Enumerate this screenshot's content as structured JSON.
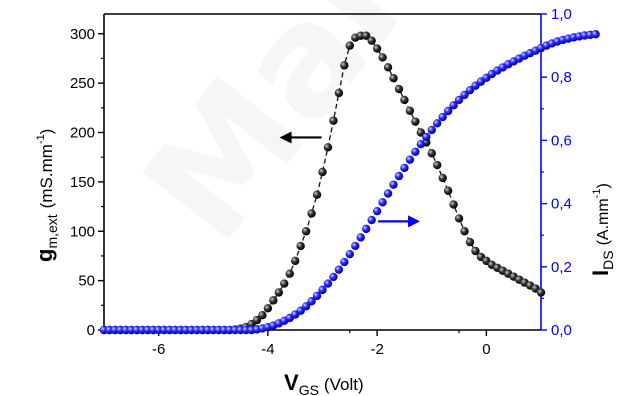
{
  "chart_data": {
    "type": "scatter",
    "watermark": "Manuscript",
    "x": {
      "label_main": "V",
      "label_sub": "GS",
      "label_unit": "(Volt)",
      "ticks": [
        "-6",
        "-4",
        "-2",
        "0"
      ],
      "tick_values": [
        -6,
        -4,
        -2,
        0
      ],
      "range": [
        -7,
        1
      ]
    },
    "y_left": {
      "label_main": "g",
      "label_sub": "m,ext",
      "label_unit": "(mS.mm",
      "label_sup": "-1",
      "label_close": ")",
      "ticks": [
        "0",
        "50",
        "100",
        "150",
        "200",
        "250",
        "300"
      ],
      "tick_values": [
        0,
        50,
        100,
        150,
        200,
        250,
        300
      ],
      "range": [
        0,
        320
      ],
      "color": "#000000"
    },
    "y_right": {
      "label_main": "I",
      "label_sub": "DS",
      "label_unit": "(A.mm",
      "label_sup": "-1",
      "label_close": ")",
      "ticks": [
        "0,0",
        "0,2",
        "0,4",
        "0,6",
        "0,8",
        "1,0"
      ],
      "tick_values": [
        0,
        0.2,
        0.4,
        0.6,
        0.8,
        1.0
      ],
      "range": [
        0,
        1.0
      ],
      "color": "#0000ff"
    },
    "series": [
      {
        "axis": "left",
        "color": "#111111",
        "marker": "sphere",
        "line": "dashed",
        "x_start": -7.0,
        "x_step": 0.1,
        "values": [
          0,
          0,
          0,
          0,
          0,
          0,
          0,
          0,
          0,
          0,
          0,
          0,
          0,
          0,
          0,
          0,
          0,
          0,
          0,
          0,
          0,
          0,
          0,
          0,
          0.5,
          1.5,
          3,
          6,
          10,
          15,
          22,
          30,
          38,
          47,
          57,
          70,
          85,
          100,
          118,
          137,
          160,
          185,
          212,
          240,
          268,
          288,
          296,
          298,
          298,
          293,
          285,
          276,
          266,
          255,
          244,
          233,
          222,
          211,
          200,
          190,
          179,
          167,
          154,
          141,
          127,
          113,
          100,
          89,
          80,
          74,
          70,
          66,
          63,
          60,
          57,
          54,
          51,
          48,
          45,
          42,
          38
        ]
      },
      {
        "axis": "right",
        "color": "#1a1ae6",
        "marker": "sphere",
        "line": "none",
        "x_start": -7.0,
        "x_step": 0.1,
        "values": [
          0,
          0,
          0,
          0,
          0,
          0,
          0,
          0,
          0,
          0,
          0,
          0,
          0,
          0,
          0,
          0,
          0,
          0,
          0,
          0,
          0,
          0,
          0,
          0,
          0,
          0,
          0,
          0,
          0.002,
          0.005,
          0.009,
          0.014,
          0.021,
          0.029,
          0.038,
          0.049,
          0.061,
          0.075,
          0.091,
          0.108,
          0.127,
          0.147,
          0.168,
          0.191,
          0.215,
          0.24,
          0.266,
          0.293,
          0.32,
          0.348,
          0.376,
          0.404,
          0.432,
          0.46,
          0.487,
          0.513,
          0.539,
          0.564,
          0.588,
          0.611,
          0.633,
          0.654,
          0.674,
          0.693,
          0.711,
          0.728,
          0.744,
          0.759,
          0.773,
          0.786,
          0.798,
          0.81,
          0.821,
          0.831,
          0.841,
          0.85,
          0.859,
          0.868,
          0.876,
          0.884,
          0.892,
          0.9,
          0.907,
          0.913,
          0.918,
          0.922,
          0.926,
          0.929,
          0.932,
          0.934,
          0.936
        ]
      }
    ],
    "annotations": [
      {
        "name": "left-arrow",
        "text": "←",
        "color": "#000000",
        "x": -3.2,
        "y_left": 195,
        "direction": "left"
      },
      {
        "name": "right-arrow",
        "text": "→",
        "color": "#0000ff",
        "x": -1.8,
        "y_left": 110,
        "direction": "right"
      }
    ]
  }
}
